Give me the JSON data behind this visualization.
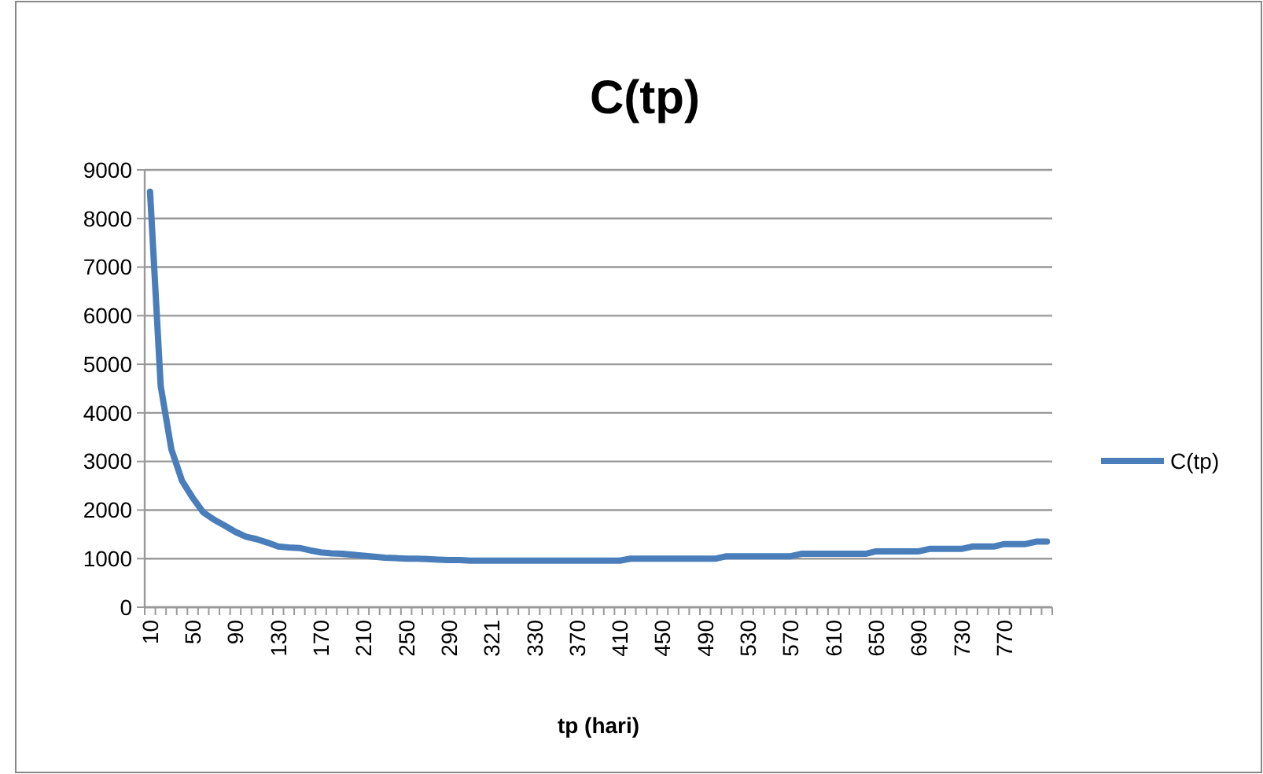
{
  "chart_data": {
    "type": "line",
    "title": "C(tp)",
    "xlabel": "tp (hari)",
    "categories": [
      "10",
      null,
      null,
      null,
      "50",
      null,
      null,
      null,
      "90",
      null,
      null,
      null,
      "130",
      null,
      null,
      null,
      "170",
      null,
      null,
      null,
      "210",
      null,
      null,
      null,
      "250",
      null,
      null,
      null,
      "290",
      null,
      null,
      null,
      "321",
      null,
      null,
      null,
      "330",
      null,
      null,
      null,
      "370",
      null,
      null,
      null,
      "410",
      null,
      null,
      null,
      "450",
      null,
      null,
      null,
      "490",
      null,
      null,
      null,
      "530",
      null,
      null,
      null,
      "570",
      null,
      null,
      null,
      "610",
      null,
      null,
      null,
      "650",
      null,
      null,
      null,
      "690",
      null,
      null,
      null,
      "730",
      null,
      null,
      null,
      "770",
      null,
      null,
      null,
      null
    ],
    "series": [
      {
        "name": "C(tp)",
        "color": "#4a7ebb",
        "values": [
          8550,
          4550,
          3250,
          2600,
          2250,
          1950,
          1800,
          1680,
          1550,
          1450,
          1400,
          1330,
          1250,
          1230,
          1220,
          1170,
          1130,
          1110,
          1100,
          1080,
          1060,
          1040,
          1020,
          1010,
          1000,
          1000,
          990,
          980,
          970,
          970,
          960,
          960,
          960,
          960,
          960,
          960,
          960,
          960,
          960,
          960,
          960,
          960,
          960,
          960,
          960,
          1000,
          1000,
          1000,
          1000,
          1000,
          1000,
          1000,
          1000,
          1000,
          1050,
          1050,
          1050,
          1050,
          1050,
          1050,
          1050,
          1100,
          1100,
          1100,
          1100,
          1100,
          1100,
          1100,
          1150,
          1150,
          1150,
          1150,
          1150,
          1200,
          1200,
          1200,
          1200,
          1250,
          1250,
          1250,
          1300,
          1300,
          1300,
          1350,
          1350
        ]
      }
    ],
    "ylim": [
      0,
      9000
    ],
    "yticks": [
      0,
      1000,
      2000,
      3000,
      4000,
      5000,
      6000,
      7000,
      8000,
      9000
    ],
    "grid": "y",
    "legend": "right",
    "marker": "none",
    "line_style": "solid"
  }
}
